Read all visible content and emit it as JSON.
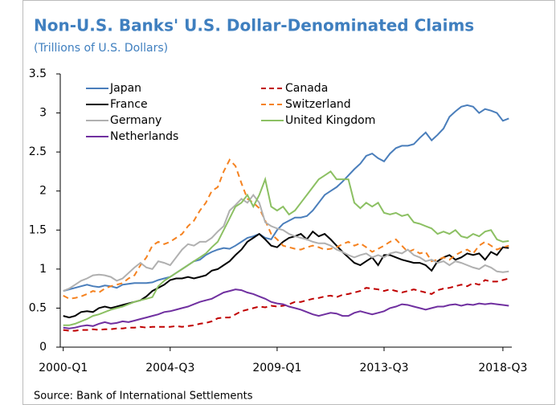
{
  "chart_data": {
    "type": "line",
    "title": "Non-U.S. Banks' U.S. Dollar-Denominated Claims",
    "subtitle": "(Trillions of U.S. Dollars)",
    "source": "Source: Bank of International Settlements",
    "categories": [
      "2000-Q1",
      null,
      null,
      null,
      null,
      null,
      null,
      null,
      null,
      null,
      null,
      null,
      null,
      null,
      null,
      null,
      null,
      null,
      "2004-Q3",
      null,
      null,
      null,
      null,
      null,
      null,
      null,
      null,
      null,
      null,
      null,
      null,
      null,
      null,
      null,
      null,
      null,
      "2009-Q1",
      null,
      null,
      null,
      null,
      null,
      null,
      null,
      null,
      null,
      null,
      null,
      null,
      null,
      null,
      null,
      null,
      null,
      "2013-Q3",
      null,
      null,
      null,
      null,
      null,
      null,
      null,
      null,
      null,
      null,
      null,
      null,
      null,
      null,
      null,
      null,
      null,
      null,
      null,
      "2018-Q3",
      null
    ],
    "ylim": [
      0,
      3.5
    ],
    "yticks": [
      0,
      0.5,
      1,
      1.5,
      2,
      2.5,
      3,
      3.5
    ],
    "grid": false,
    "legend": "upper left",
    "series": [
      {
        "name": "Japan",
        "color": "#4a7ebb",
        "dashed": false,
        "values": [
          0.72,
          0.74,
          0.76,
          0.78,
          0.8,
          0.78,
          0.77,
          0.79,
          0.78,
          0.76,
          0.8,
          0.81,
          0.82,
          0.82,
          0.82,
          0.83,
          0.86,
          0.88,
          0.9,
          0.95,
          1.0,
          1.05,
          1.1,
          1.12,
          1.18,
          1.22,
          1.25,
          1.27,
          1.26,
          1.3,
          1.35,
          1.4,
          1.42,
          1.45,
          1.4,
          1.38,
          1.5,
          1.58,
          1.62,
          1.66,
          1.66,
          1.68,
          1.75,
          1.85,
          1.95,
          2.0,
          2.05,
          2.12,
          2.2,
          2.28,
          2.35,
          2.45,
          2.48,
          2.42,
          2.38,
          2.48,
          2.55,
          2.58,
          2.58,
          2.6,
          2.68,
          2.75,
          2.65,
          2.72,
          2.8,
          2.95,
          3.02,
          3.08,
          3.1,
          3.08,
          3.0,
          3.05,
          3.03,
          3.0,
          2.9,
          2.93
        ]
      },
      {
        "name": "Canada",
        "color": "#c00000",
        "dashed": true,
        "values": [
          0.22,
          0.21,
          0.21,
          0.22,
          0.22,
          0.23,
          0.22,
          0.23,
          0.23,
          0.24,
          0.24,
          0.25,
          0.25,
          0.26,
          0.25,
          0.26,
          0.26,
          0.26,
          0.26,
          0.27,
          0.26,
          0.27,
          0.28,
          0.3,
          0.31,
          0.33,
          0.37,
          0.38,
          0.38,
          0.42,
          0.46,
          0.48,
          0.5,
          0.52,
          0.51,
          0.53,
          0.52,
          0.53,
          0.55,
          0.58,
          0.58,
          0.6,
          0.62,
          0.63,
          0.65,
          0.66,
          0.64,
          0.67,
          0.68,
          0.7,
          0.72,
          0.76,
          0.75,
          0.74,
          0.72,
          0.74,
          0.72,
          0.7,
          0.72,
          0.74,
          0.72,
          0.7,
          0.68,
          0.73,
          0.75,
          0.76,
          0.78,
          0.8,
          0.78,
          0.82,
          0.8,
          0.86,
          0.84,
          0.84,
          0.86,
          0.88
        ]
      },
      {
        "name": "France",
        "color": "#000000",
        "dashed": false,
        "values": [
          0.4,
          0.38,
          0.4,
          0.45,
          0.46,
          0.45,
          0.5,
          0.52,
          0.5,
          0.52,
          0.54,
          0.56,
          0.58,
          0.6,
          0.65,
          0.72,
          0.76,
          0.8,
          0.86,
          0.88,
          0.88,
          0.9,
          0.88,
          0.9,
          0.92,
          0.98,
          1.0,
          1.05,
          1.1,
          1.18,
          1.25,
          1.35,
          1.4,
          1.45,
          1.38,
          1.3,
          1.28,
          1.35,
          1.4,
          1.42,
          1.45,
          1.38,
          1.48,
          1.42,
          1.45,
          1.38,
          1.3,
          1.22,
          1.15,
          1.08,
          1.05,
          1.1,
          1.15,
          1.05,
          1.18,
          1.18,
          1.15,
          1.12,
          1.1,
          1.08,
          1.08,
          1.05,
          0.98,
          1.1,
          1.15,
          1.18,
          1.12,
          1.15,
          1.2,
          1.18,
          1.2,
          1.12,
          1.22,
          1.18,
          1.28,
          1.27
        ]
      },
      {
        "name": "Switzerland",
        "color": "#f58220",
        "dashed": true,
        "values": [
          0.66,
          0.62,
          0.63,
          0.65,
          0.68,
          0.72,
          0.7,
          0.75,
          0.78,
          0.8,
          0.82,
          0.88,
          0.92,
          1.05,
          1.15,
          1.3,
          1.35,
          1.32,
          1.35,
          1.4,
          1.45,
          1.55,
          1.62,
          1.75,
          1.85,
          2.0,
          2.05,
          2.25,
          2.4,
          2.32,
          2.1,
          1.9,
          1.85,
          1.78,
          1.62,
          1.45,
          1.38,
          1.3,
          1.28,
          1.26,
          1.25,
          1.28,
          1.3,
          1.28,
          1.25,
          1.26,
          1.28,
          1.32,
          1.35,
          1.3,
          1.33,
          1.28,
          1.22,
          1.26,
          1.3,
          1.35,
          1.38,
          1.3,
          1.22,
          1.25,
          1.2,
          1.22,
          1.1,
          1.12,
          1.15,
          1.12,
          1.18,
          1.22,
          1.25,
          1.2,
          1.3,
          1.35,
          1.3,
          1.25,
          1.28,
          1.3
        ]
      },
      {
        "name": "Germany",
        "color": "#b0b0b0",
        "dashed": false,
        "values": [
          0.72,
          0.75,
          0.8,
          0.85,
          0.88,
          0.92,
          0.93,
          0.92,
          0.9,
          0.85,
          0.88,
          0.95,
          1.02,
          1.08,
          1.02,
          1.0,
          1.1,
          1.08,
          1.05,
          1.15,
          1.25,
          1.32,
          1.3,
          1.35,
          1.35,
          1.4,
          1.48,
          1.55,
          1.75,
          1.82,
          1.9,
          1.85,
          1.95,
          1.85,
          1.6,
          1.55,
          1.52,
          1.5,
          1.45,
          1.42,
          1.4,
          1.38,
          1.35,
          1.33,
          1.33,
          1.3,
          1.25,
          1.22,
          1.18,
          1.15,
          1.18,
          1.2,
          1.15,
          1.18,
          1.15,
          1.2,
          1.22,
          1.2,
          1.25,
          1.18,
          1.15,
          1.1,
          1.12,
          1.08,
          1.1,
          1.05,
          1.1,
          1.08,
          1.05,
          1.02,
          1.0,
          1.05,
          1.02,
          0.97,
          0.96,
          0.97
        ]
      },
      {
        "name": "United Kingdom",
        "color": "#8cc063",
        "dashed": false,
        "values": [
          0.28,
          0.28,
          0.3,
          0.33,
          0.36,
          0.4,
          0.42,
          0.45,
          0.48,
          0.5,
          0.52,
          0.55,
          0.58,
          0.6,
          0.62,
          0.64,
          0.78,
          0.85,
          0.9,
          0.95,
          1.0,
          1.05,
          1.1,
          1.15,
          1.2,
          1.28,
          1.35,
          1.5,
          1.65,
          1.8,
          1.85,
          1.95,
          1.8,
          1.95,
          2.15,
          1.8,
          1.75,
          1.8,
          1.7,
          1.75,
          1.85,
          1.95,
          2.05,
          2.15,
          2.2,
          2.25,
          2.15,
          2.15,
          2.15,
          1.85,
          1.78,
          1.85,
          1.8,
          1.85,
          1.72,
          1.7,
          1.72,
          1.68,
          1.7,
          1.6,
          1.58,
          1.55,
          1.52,
          1.45,
          1.48,
          1.45,
          1.5,
          1.42,
          1.4,
          1.45,
          1.42,
          1.48,
          1.5,
          1.38,
          1.35,
          1.36
        ]
      },
      {
        "name": "Netherlands",
        "color": "#7030a0",
        "dashed": false,
        "values": [
          0.25,
          0.24,
          0.25,
          0.27,
          0.28,
          0.27,
          0.3,
          0.32,
          0.3,
          0.31,
          0.33,
          0.32,
          0.34,
          0.36,
          0.38,
          0.4,
          0.42,
          0.45,
          0.46,
          0.48,
          0.5,
          0.52,
          0.55,
          0.58,
          0.6,
          0.62,
          0.66,
          0.7,
          0.72,
          0.74,
          0.73,
          0.7,
          0.68,
          0.65,
          0.62,
          0.58,
          0.56,
          0.55,
          0.52,
          0.5,
          0.48,
          0.45,
          0.42,
          0.4,
          0.42,
          0.44,
          0.43,
          0.4,
          0.4,
          0.44,
          0.46,
          0.44,
          0.42,
          0.44,
          0.46,
          0.5,
          0.52,
          0.55,
          0.54,
          0.52,
          0.5,
          0.48,
          0.5,
          0.52,
          0.52,
          0.54,
          0.55,
          0.53,
          0.55,
          0.54,
          0.56,
          0.55,
          0.56,
          0.55,
          0.54,
          0.53
        ]
      }
    ]
  }
}
